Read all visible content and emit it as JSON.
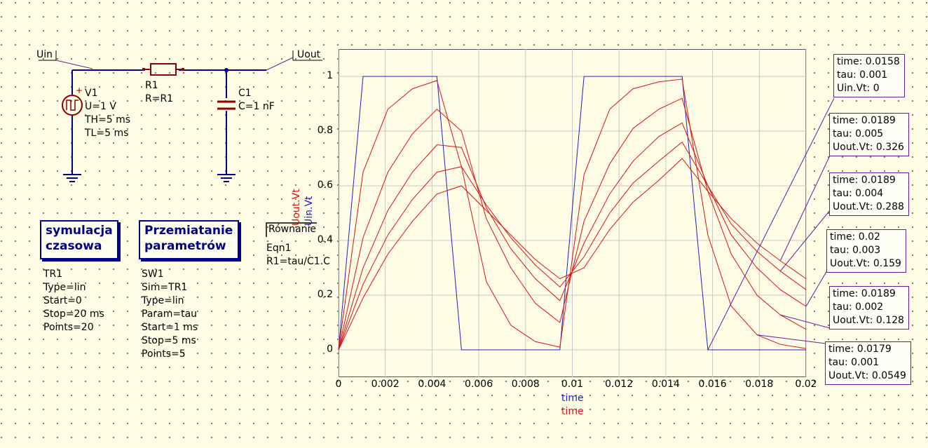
{
  "schematic": {
    "ports": [
      {
        "name": "Uin"
      },
      {
        "name": "Uout"
      }
    ],
    "source": {
      "name": "V1",
      "props": [
        "U=1 V",
        "TH=5 ms",
        "TL=5 ms"
      ]
    },
    "resistor": {
      "name": "R1",
      "props": [
        "R=R1"
      ]
    },
    "capacitor": {
      "name": "C1",
      "props": [
        "C=1 nF"
      ]
    },
    "equation": {
      "title": "Równanie",
      "name": "Eqn1",
      "expr": "R1=tau/C1.C"
    }
  },
  "transient_sim": {
    "title_line1": "symulacja",
    "title_line2": "czasowa",
    "props": [
      "TR1",
      "Type=lin",
      "Start=0",
      "Stop=20 ms",
      "Points=20"
    ]
  },
  "param_sweep": {
    "title_line1": "Przemiatanie",
    "title_line2": "parametrów",
    "props": [
      "SW1",
      "Sim=TR1",
      "Type=lin",
      "Param=tau",
      "Start=1 ms",
      "Stop=5 ms",
      "Points=5"
    ]
  },
  "markers": [
    {
      "lines": [
        "time: 0.0158",
        "tau: 0.001",
        "Uin.Vt: 0"
      ]
    },
    {
      "lines": [
        "time: 0.0189",
        "tau: 0.005",
        "Uout.Vt: 0.326"
      ]
    },
    {
      "lines": [
        "time: 0.0189",
        "tau: 0.004",
        "Uout.Vt: 0.288"
      ]
    },
    {
      "lines": [
        "time: 0.02",
        "tau: 0.003",
        "Uout.Vt: 0.159"
      ]
    },
    {
      "lines": [
        "time: 0.0189",
        "tau: 0.002",
        "Uout.Vt: 0.128"
      ]
    },
    {
      "lines": [
        "time: 0.0179",
        "tau: 0.001",
        "Uout.Vt: 0.0549"
      ]
    }
  ],
  "colors": {
    "uin": "#2020c8",
    "uout": "#e01010",
    "grid": "#c8c8c8",
    "wire": "#00008b",
    "marker": "#6a1b9a"
  },
  "chart_data": {
    "type": "line",
    "xlabel_blue": "time",
    "xlabel_red": "time",
    "ylabel_red": "Uout.Vt",
    "ylabel_blue": "Uin.Vt",
    "xlim": [
      0,
      0.02
    ],
    "ylim": [
      -0.1,
      1.1
    ],
    "x_ticks": [
      "0",
      "0.002",
      "0.004",
      "0.006",
      "0.008",
      "0.01",
      "0.012",
      "0.014",
      "0.016",
      "0.018",
      "0.02"
    ],
    "y_ticks": [
      "0",
      "0.2",
      "0.4",
      "0.6",
      "0.8",
      "1"
    ],
    "series": [
      {
        "name": "Uin.Vt",
        "color": "#2020c8",
        "x": [
          0,
          0.00105,
          0.00421,
          0.00526,
          0.00947,
          0.0105,
          0.0147,
          0.0158,
          0.02
        ],
        "y": [
          0,
          1,
          1,
          0,
          0,
          1,
          1,
          0,
          0
        ]
      },
      {
        "param": "tau=0.001",
        "color": "#e01010",
        "x": [
          0,
          0.00105,
          0.00211,
          0.00316,
          0.00421,
          0.00526,
          0.00632,
          0.00737,
          0.00842,
          0.00947,
          0.0105,
          0.0116,
          0.0126,
          0.0137,
          0.0147,
          0.0158,
          0.0168,
          0.0179,
          0.0189,
          0.02
        ],
        "y": [
          0,
          0.65,
          0.88,
          0.955,
          0.985,
          0.67,
          0.25,
          0.09,
          0.03,
          0.01,
          0.64,
          0.88,
          0.955,
          0.98,
          0.99,
          0.42,
          0.16,
          0.0549,
          0.02,
          0.005
        ]
      },
      {
        "param": "tau=0.002",
        "color": "#e01010",
        "x": [
          0,
          0.00105,
          0.00211,
          0.00316,
          0.00421,
          0.00526,
          0.00632,
          0.00737,
          0.00842,
          0.00947,
          0.0105,
          0.0116,
          0.0126,
          0.0137,
          0.0147,
          0.0158,
          0.0168,
          0.0179,
          0.0189,
          0.02
        ],
        "y": [
          0,
          0.41,
          0.65,
          0.79,
          0.88,
          0.8,
          0.48,
          0.3,
          0.17,
          0.1,
          0.47,
          0.68,
          0.81,
          0.88,
          0.92,
          0.58,
          0.35,
          0.2,
          0.128,
          0.075
        ]
      },
      {
        "param": "tau=0.003",
        "color": "#e01010",
        "x": [
          0,
          0.00105,
          0.00211,
          0.00316,
          0.00421,
          0.00526,
          0.00632,
          0.00737,
          0.00842,
          0.00947,
          0.0105,
          0.0116,
          0.0126,
          0.0137,
          0.0147,
          0.0158,
          0.0168,
          0.0179,
          0.0189,
          0.02
        ],
        "y": [
          0,
          0.3,
          0.51,
          0.65,
          0.75,
          0.74,
          0.52,
          0.37,
          0.26,
          0.18,
          0.39,
          0.57,
          0.69,
          0.78,
          0.83,
          0.6,
          0.42,
          0.3,
          0.22,
          0.159
        ]
      },
      {
        "param": "tau=0.004",
        "color": "#e01010",
        "x": [
          0,
          0.00105,
          0.00211,
          0.00316,
          0.00421,
          0.00526,
          0.00632,
          0.00737,
          0.00842,
          0.00947,
          0.0105,
          0.0116,
          0.0126,
          0.0137,
          0.0147,
          0.0158,
          0.0168,
          0.0179,
          0.0189,
          0.02
        ],
        "y": [
          0,
          0.24,
          0.42,
          0.55,
          0.65,
          0.67,
          0.53,
          0.41,
          0.31,
          0.23,
          0.34,
          0.5,
          0.61,
          0.69,
          0.76,
          0.6,
          0.46,
          0.36,
          0.288,
          0.22
        ]
      },
      {
        "param": "tau=0.005",
        "color": "#e01010",
        "x": [
          0,
          0.00105,
          0.00211,
          0.00316,
          0.00421,
          0.00526,
          0.00632,
          0.00737,
          0.00842,
          0.00947,
          0.0105,
          0.0116,
          0.0126,
          0.0137,
          0.0147,
          0.0158,
          0.0168,
          0.0179,
          0.0189,
          0.02
        ],
        "y": [
          0,
          0.19,
          0.35,
          0.47,
          0.57,
          0.6,
          0.51,
          0.42,
          0.33,
          0.26,
          0.3,
          0.44,
          0.54,
          0.62,
          0.7,
          0.58,
          0.48,
          0.39,
          0.326,
          0.26
        ]
      }
    ]
  }
}
